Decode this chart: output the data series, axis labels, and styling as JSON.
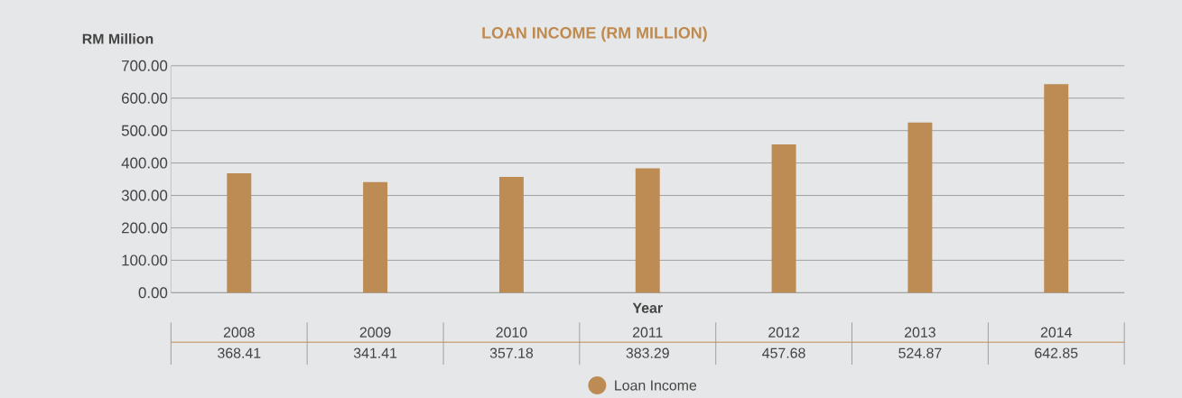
{
  "chart_data": {
    "type": "bar",
    "title": "LOAN INCOME (RM MILLION)",
    "xlabel": "Year",
    "ylabel": "RM Million",
    "categories": [
      "2008",
      "2009",
      "2010",
      "2011",
      "2012",
      "2013",
      "2014"
    ],
    "series": [
      {
        "name": "Loan Income",
        "color": "#bd8b54",
        "values": [
          368.41,
          341.41,
          357.18,
          383.29,
          457.68,
          524.87,
          642.85
        ]
      }
    ],
    "ylim": [
      0,
      700
    ],
    "yticks": [
      {
        "value": 0,
        "label": "0.00"
      },
      {
        "value": 100,
        "label": "100.00"
      },
      {
        "value": 200,
        "label": "200.00"
      },
      {
        "value": 300,
        "label": "300.00"
      },
      {
        "value": 400,
        "label": "400.00"
      },
      {
        "value": 500,
        "label": "500.00"
      },
      {
        "value": 600,
        "label": "600.00"
      },
      {
        "value": 700,
        "label": "700.00"
      }
    ],
    "grid": "y",
    "data_labels": true,
    "legend": "bottom"
  }
}
